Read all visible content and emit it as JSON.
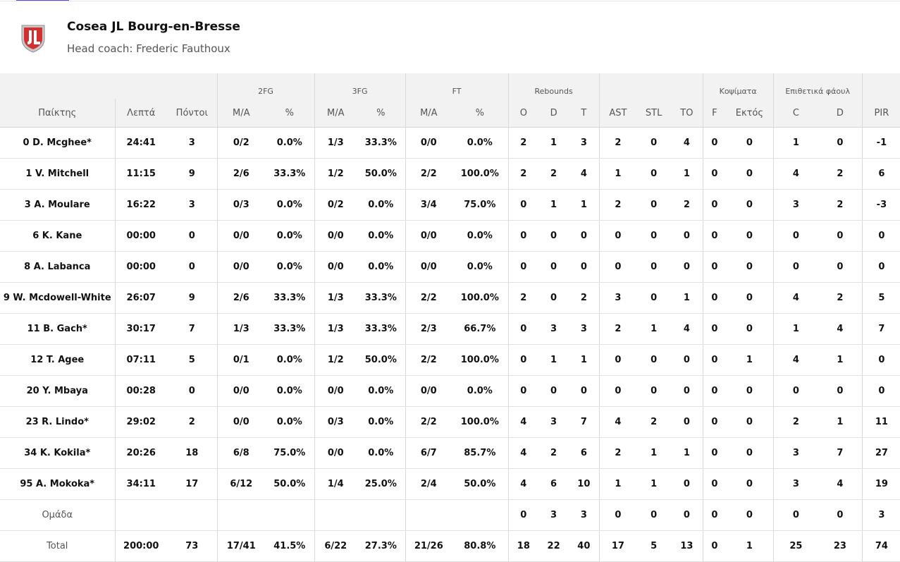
{
  "team": {
    "name": "Cosea JL Bourg-en-Bresse",
    "coach": "Head coach: Frederic Fauthoux",
    "colors": {
      "accent": "#5b4bd6",
      "logo_red": "#d32f2f",
      "logo_silver": "#b0b0b0"
    }
  },
  "table": {
    "groups": {
      "fg2": "2FG",
      "fg3": "3FG",
      "ft": "FT",
      "rebounds": "Rebounds",
      "blocks": "Κοψίματα",
      "fouls": "Επιθετικά φάουλ"
    },
    "columns": {
      "player": "Παίκτης",
      "minutes": "Λεπτά",
      "points": "Πόντοι",
      "fg2_ma": "M/A",
      "fg2_pct": "%",
      "fg3_ma": "M/A",
      "fg3_pct": "%",
      "ft_ma": "M/A",
      "ft_pct": "%",
      "reb_o": "O",
      "reb_d": "D",
      "reb_t": "T",
      "ast": "AST",
      "stl": "STL",
      "to": "TO",
      "blk_f": "F",
      "blk_a": "Εκτός",
      "foul_c": "C",
      "foul_d": "D",
      "pir": "PIR"
    },
    "rows": [
      {
        "player": "0 D. Mcghee*",
        "min": "24:41",
        "pts": "3",
        "fg2": "0/2",
        "fg2p": "0.0%",
        "fg3": "1/3",
        "fg3p": "33.3%",
        "ft": "0/0",
        "ftp": "0.0%",
        "o": "2",
        "d": "1",
        "t": "3",
        "ast": "2",
        "stl": "0",
        "to": "4",
        "bf": "0",
        "ba": "0",
        "fc": "1",
        "fd": "0",
        "pir": "-1"
      },
      {
        "player": "1 V. Mitchell",
        "min": "11:15",
        "pts": "9",
        "fg2": "2/6",
        "fg2p": "33.3%",
        "fg3": "1/2",
        "fg3p": "50.0%",
        "ft": "2/2",
        "ftp": "100.0%",
        "o": "2",
        "d": "2",
        "t": "4",
        "ast": "1",
        "stl": "0",
        "to": "1",
        "bf": "0",
        "ba": "0",
        "fc": "4",
        "fd": "2",
        "pir": "6"
      },
      {
        "player": "3 A. Moulare",
        "min": "16:22",
        "pts": "3",
        "fg2": "0/3",
        "fg2p": "0.0%",
        "fg3": "0/2",
        "fg3p": "0.0%",
        "ft": "3/4",
        "ftp": "75.0%",
        "o": "0",
        "d": "1",
        "t": "1",
        "ast": "2",
        "stl": "0",
        "to": "2",
        "bf": "0",
        "ba": "0",
        "fc": "3",
        "fd": "2",
        "pir": "-3"
      },
      {
        "player": "6 K. Kane",
        "min": "00:00",
        "pts": "0",
        "fg2": "0/0",
        "fg2p": "0.0%",
        "fg3": "0/0",
        "fg3p": "0.0%",
        "ft": "0/0",
        "ftp": "0.0%",
        "o": "0",
        "d": "0",
        "t": "0",
        "ast": "0",
        "stl": "0",
        "to": "0",
        "bf": "0",
        "ba": "0",
        "fc": "0",
        "fd": "0",
        "pir": "0"
      },
      {
        "player": "8 A. Labanca",
        "min": "00:00",
        "pts": "0",
        "fg2": "0/0",
        "fg2p": "0.0%",
        "fg3": "0/0",
        "fg3p": "0.0%",
        "ft": "0/0",
        "ftp": "0.0%",
        "o": "0",
        "d": "0",
        "t": "0",
        "ast": "0",
        "stl": "0",
        "to": "0",
        "bf": "0",
        "ba": "0",
        "fc": "0",
        "fd": "0",
        "pir": "0"
      },
      {
        "player": "9 W. Mcdowell-White",
        "min": "26:07",
        "pts": "9",
        "fg2": "2/6",
        "fg2p": "33.3%",
        "fg3": "1/3",
        "fg3p": "33.3%",
        "ft": "2/2",
        "ftp": "100.0%",
        "o": "2",
        "d": "0",
        "t": "2",
        "ast": "3",
        "stl": "0",
        "to": "1",
        "bf": "0",
        "ba": "0",
        "fc": "4",
        "fd": "2",
        "pir": "5"
      },
      {
        "player": "11 B. Gach*",
        "min": "30:17",
        "pts": "7",
        "fg2": "1/3",
        "fg2p": "33.3%",
        "fg3": "1/3",
        "fg3p": "33.3%",
        "ft": "2/3",
        "ftp": "66.7%",
        "o": "0",
        "d": "3",
        "t": "3",
        "ast": "2",
        "stl": "1",
        "to": "4",
        "bf": "0",
        "ba": "0",
        "fc": "1",
        "fd": "4",
        "pir": "7"
      },
      {
        "player": "12 T. Agee",
        "min": "07:11",
        "pts": "5",
        "fg2": "0/1",
        "fg2p": "0.0%",
        "fg3": "1/2",
        "fg3p": "50.0%",
        "ft": "2/2",
        "ftp": "100.0%",
        "o": "0",
        "d": "1",
        "t": "1",
        "ast": "0",
        "stl": "0",
        "to": "0",
        "bf": "0",
        "ba": "1",
        "fc": "4",
        "fd": "1",
        "pir": "0"
      },
      {
        "player": "20 Y. Mbaya",
        "min": "00:28",
        "pts": "0",
        "fg2": "0/0",
        "fg2p": "0.0%",
        "fg3": "0/0",
        "fg3p": "0.0%",
        "ft": "0/0",
        "ftp": "0.0%",
        "o": "0",
        "d": "0",
        "t": "0",
        "ast": "0",
        "stl": "0",
        "to": "0",
        "bf": "0",
        "ba": "0",
        "fc": "0",
        "fd": "0",
        "pir": "0"
      },
      {
        "player": "23 R. Lindo*",
        "min": "29:02",
        "pts": "2",
        "fg2": "0/0",
        "fg2p": "0.0%",
        "fg3": "0/3",
        "fg3p": "0.0%",
        "ft": "2/2",
        "ftp": "100.0%",
        "o": "4",
        "d": "3",
        "t": "7",
        "ast": "4",
        "stl": "2",
        "to": "0",
        "bf": "0",
        "ba": "0",
        "fc": "2",
        "fd": "1",
        "pir": "11"
      },
      {
        "player": "34 K. Kokila*",
        "min": "20:26",
        "pts": "18",
        "fg2": "6/8",
        "fg2p": "75.0%",
        "fg3": "0/0",
        "fg3p": "0.0%",
        "ft": "6/7",
        "ftp": "85.7%",
        "o": "4",
        "d": "2",
        "t": "6",
        "ast": "2",
        "stl": "1",
        "to": "1",
        "bf": "0",
        "ba": "0",
        "fc": "3",
        "fd": "7",
        "pir": "27"
      },
      {
        "player": "95 A. Mokoka*",
        "min": "34:11",
        "pts": "17",
        "fg2": "6/12",
        "fg2p": "50.0%",
        "fg3": "1/4",
        "fg3p": "25.0%",
        "ft": "2/4",
        "ftp": "50.0%",
        "o": "4",
        "d": "6",
        "t": "10",
        "ast": "1",
        "stl": "1",
        "to": "0",
        "bf": "0",
        "ba": "0",
        "fc": "3",
        "fd": "4",
        "pir": "19"
      }
    ],
    "team_row": {
      "player": "Ομάδα",
      "min": "",
      "pts": "",
      "fg2": "",
      "fg2p": "",
      "fg3": "",
      "fg3p": "",
      "ft": "",
      "ftp": "",
      "o": "0",
      "d": "3",
      "t": "3",
      "ast": "0",
      "stl": "0",
      "to": "0",
      "bf": "0",
      "ba": "0",
      "fc": "0",
      "fd": "0",
      "pir": "3"
    },
    "total_row": {
      "player": "Total",
      "min": "200:00",
      "pts": "73",
      "fg2": "17/41",
      "fg2p": "41.5%",
      "fg3": "6/22",
      "fg3p": "27.3%",
      "ft": "21/26",
      "ftp": "80.8%",
      "o": "18",
      "d": "22",
      "t": "40",
      "ast": "17",
      "stl": "5",
      "to": "13",
      "bf": "0",
      "ba": "1",
      "fc": "25",
      "fd": "23",
      "pir": "74"
    }
  }
}
